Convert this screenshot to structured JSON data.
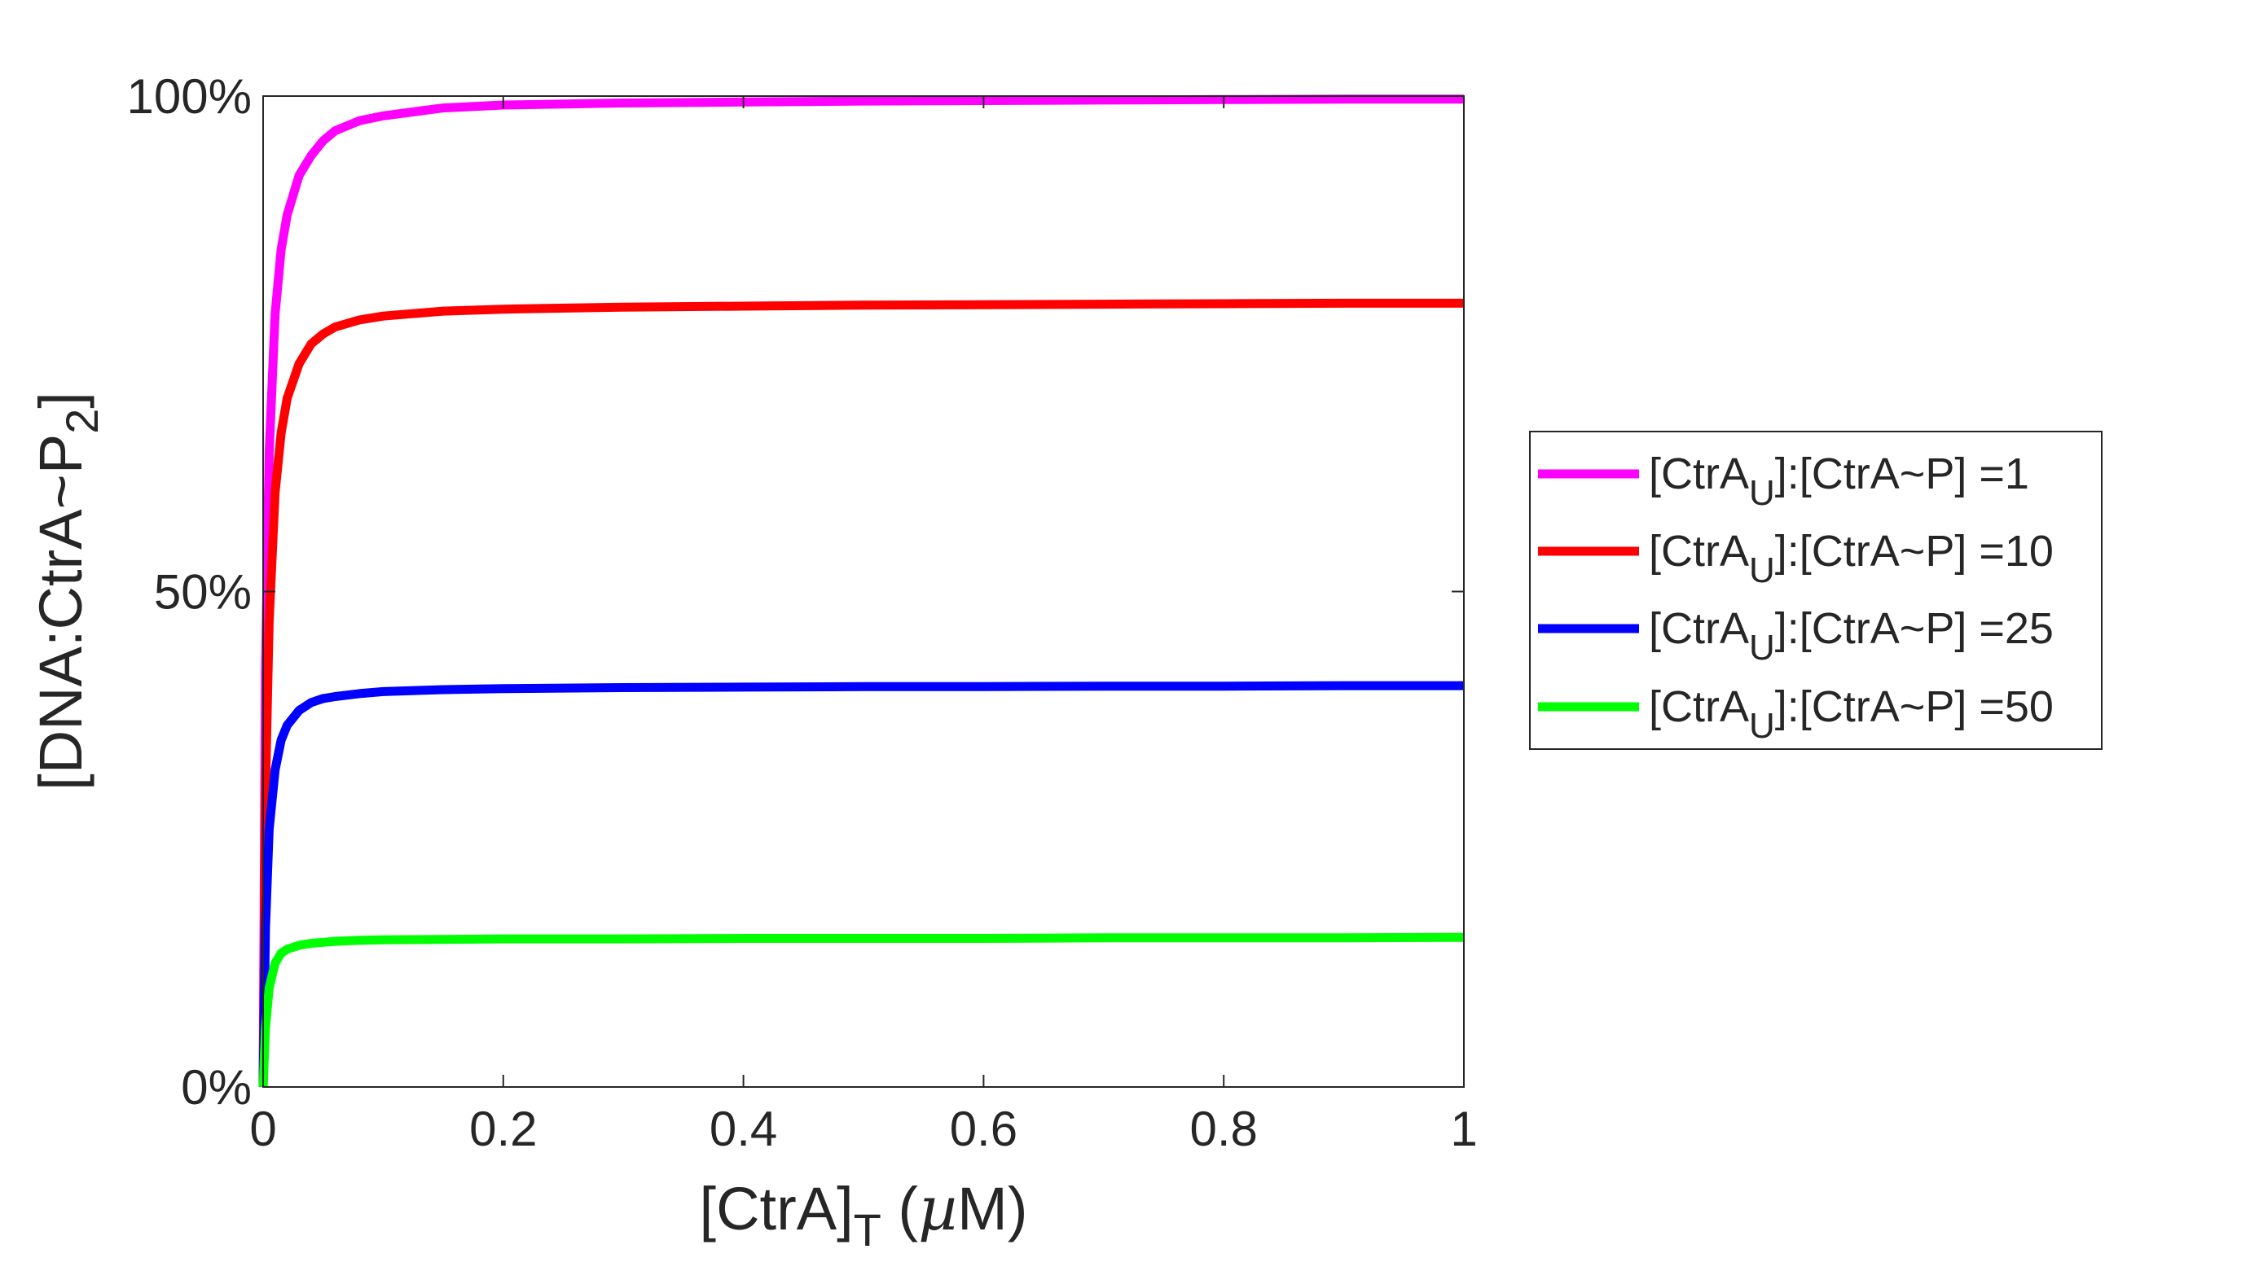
{
  "chart_data": {
    "type": "line",
    "xlabel": {
      "base": "[CtrA]",
      "sub": "T",
      "tail_pre": " (",
      "tail_mu": "µ",
      "tail_post": "M)"
    },
    "ylabel": {
      "base": "[DNA:CtrA~P",
      "sub": "2",
      "tail": "]"
    },
    "xlim": [
      0,
      1
    ],
    "ylim": [
      0,
      1
    ],
    "xticks": [
      0,
      0.2,
      0.4,
      0.6,
      0.8,
      1
    ],
    "xtick_labels": [
      "0",
      "0.2",
      "0.4",
      "0.6",
      "0.8",
      "1"
    ],
    "yticks": [
      0,
      0.5,
      1
    ],
    "ytick_labels": [
      "0%",
      "50%",
      "100%"
    ],
    "grid": false,
    "legend_position": "outside-right",
    "x": [
      0,
      0.002,
      0.005,
      0.01,
      0.015,
      0.02,
      0.03,
      0.04,
      0.05,
      0.06,
      0.08,
      0.1,
      0.15,
      0.2,
      0.3,
      0.4,
      0.5,
      0.6,
      0.7,
      0.8,
      0.9,
      1.0
    ],
    "series": [
      {
        "name": "[CtrA_U]:[CtrA~P] =1",
        "color": "#ff00ff",
        "label_parts": {
          "pre": "[CtrA",
          "sub": "U",
          "post": "]:[CtrA~P] =1"
        },
        "values": [
          0,
          0.42,
          0.64,
          0.78,
          0.845,
          0.88,
          0.92,
          0.94,
          0.955,
          0.965,
          0.975,
          0.98,
          0.988,
          0.991,
          0.993,
          0.994,
          0.995,
          0.9955,
          0.996,
          0.9965,
          0.997,
          0.997
        ]
      },
      {
        "name": "[CtrA_U]:[CtrA~P] =10",
        "color": "#ff0000",
        "label_parts": {
          "pre": "[CtrA",
          "sub": "U",
          "post": "]:[CtrA~P] =10"
        },
        "values": [
          0,
          0.3,
          0.47,
          0.6,
          0.66,
          0.695,
          0.73,
          0.75,
          0.76,
          0.767,
          0.774,
          0.778,
          0.783,
          0.785,
          0.787,
          0.788,
          0.789,
          0.7895,
          0.79,
          0.7905,
          0.791,
          0.791
        ]
      },
      {
        "name": "[CtrA_U]:[CtrA~P] =25",
        "color": "#0000ff",
        "label_parts": {
          "pre": "[CtrA",
          "sub": "U",
          "post": "]:[CtrA~P] =25"
        },
        "values": [
          0,
          0.16,
          0.26,
          0.32,
          0.35,
          0.365,
          0.38,
          0.388,
          0.392,
          0.394,
          0.397,
          0.399,
          0.401,
          0.402,
          0.403,
          0.4035,
          0.404,
          0.404,
          0.4045,
          0.4045,
          0.405,
          0.405
        ]
      },
      {
        "name": "[CtrA_U]:[CtrA~P] =50",
        "color": "#00ff00",
        "label_parts": {
          "pre": "[CtrA",
          "sub": "U",
          "post": "]:[CtrA~P] =50"
        },
        "values": [
          0,
          0.06,
          0.1,
          0.125,
          0.135,
          0.139,
          0.143,
          0.145,
          0.146,
          0.147,
          0.148,
          0.1485,
          0.149,
          0.1495,
          0.1495,
          0.15,
          0.15,
          0.15,
          0.1505,
          0.1505,
          0.1505,
          0.151
        ]
      }
    ]
  }
}
